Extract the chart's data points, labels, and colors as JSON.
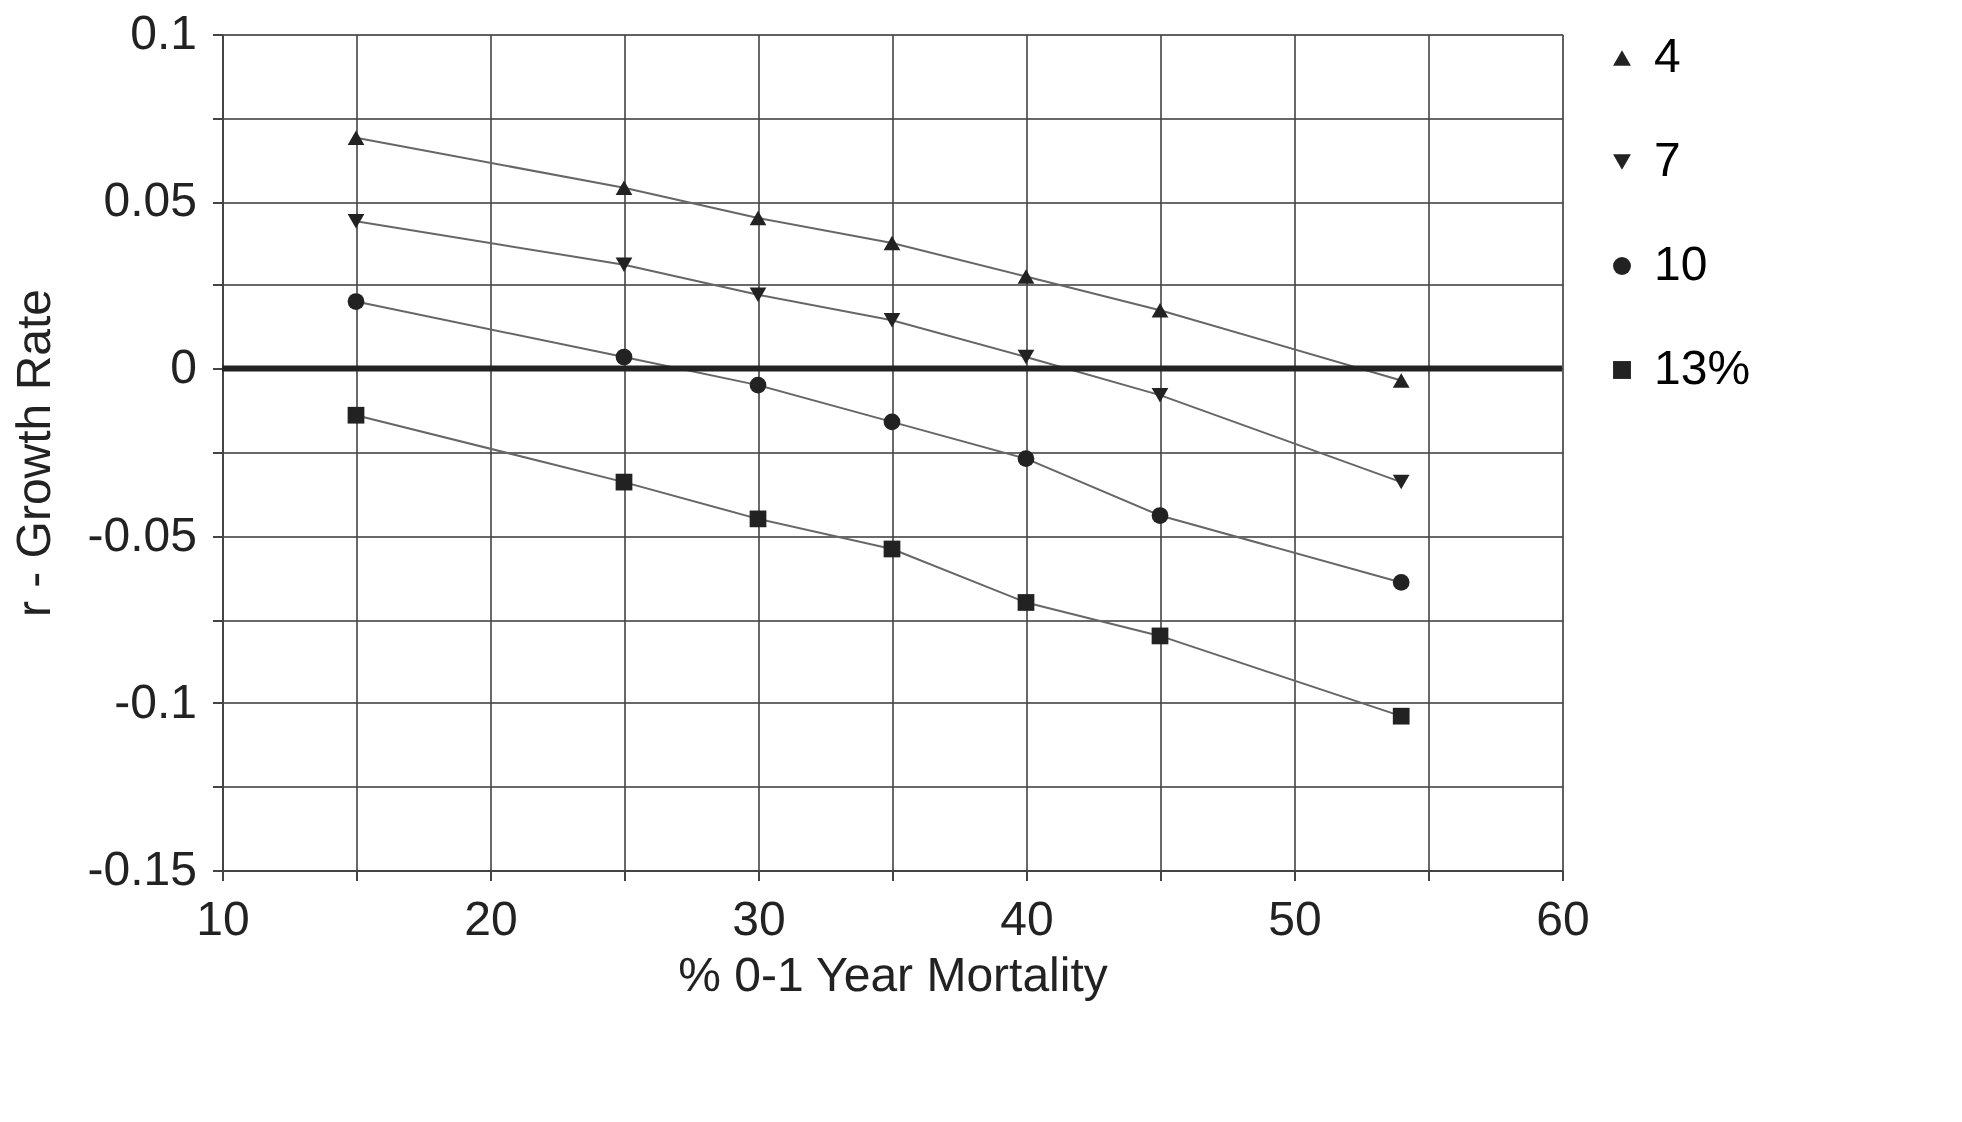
{
  "chart_data": {
    "type": "line",
    "xlabel": "% 0-1 Year Mortality",
    "ylabel": "r - Growth Rate",
    "x": [
      15,
      25,
      30,
      35,
      40,
      45,
      54
    ],
    "series": [
      {
        "name": "4",
        "color": "#222222",
        "marker": "triangle",
        "values": [
          0.069,
          0.054,
          0.045,
          0.0375,
          0.0275,
          0.0174,
          -0.0036
        ]
      },
      {
        "name": "7",
        "color": "#222222",
        "marker": "triangle-down",
        "values": [
          0.044,
          0.031,
          0.022,
          0.0144,
          0.0034,
          -0.008,
          -0.034
        ]
      },
      {
        "name": "10",
        "color": "#222222",
        "marker": "circle",
        "values": [
          0.02,
          0.0034,
          -0.005,
          -0.016,
          -0.027,
          -0.044,
          -0.064
        ]
      },
      {
        "name": "13%",
        "color": "#222222",
        "marker": "square",
        "values": [
          -0.014,
          -0.034,
          -0.045,
          -0.054,
          -0.07,
          -0.08,
          -0.104
        ]
      }
    ],
    "xlim": [
      10,
      60
    ],
    "xticks": [
      10,
      {
        "value": 15,
        "label": null
      },
      20,
      {
        "value": 25,
        "label": null
      },
      30,
      {
        "value": 35,
        "label": null
      },
      40,
      {
        "value": 45,
        "label": null
      },
      50,
      {
        "value": 55,
        "label": null
      },
      60
    ],
    "ylim": [
      -0.15,
      0.1
    ],
    "yticks": [
      -0.15,
      {
        "value": -0.125,
        "label": null
      },
      -0.1,
      {
        "value": -0.075,
        "label": null
      },
      -0.05,
      {
        "value": -0.025,
        "label": null
      },
      0,
      {
        "value": 0.025,
        "label": null
      },
      0.05,
      {
        "value": 0.075,
        "label": null
      },
      0.1
    ],
    "ref_lines": [
      {
        "axis": "y",
        "value": 0,
        "color": "#222222"
      }
    ],
    "grid": true,
    "legend": "right",
    "line_style": "solid"
  }
}
